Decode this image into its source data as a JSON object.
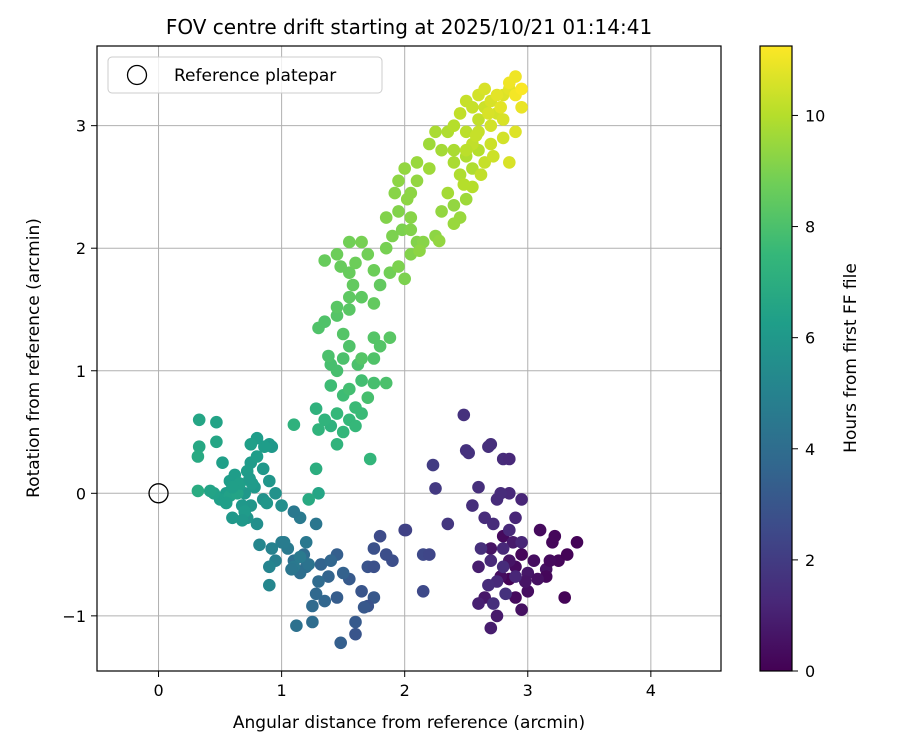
{
  "chart_data": {
    "type": "scatter",
    "title": "FOV centre drift starting at 2025/10/21 01:14:41",
    "xlabel": "Angular distance from reference (arcmin)",
    "ylabel": "Rotation from reference (arcmin)",
    "xlim": [
      -0.5,
      4.57
    ],
    "ylim": [
      -1.45,
      3.65
    ],
    "xticks": [
      0,
      1,
      2,
      3,
      4
    ],
    "yticks": [
      -1,
      0,
      1,
      2,
      3
    ],
    "xtick_labels": [
      "0",
      "1",
      "2",
      "3",
      "4"
    ],
    "ytick_labels": [
      "−1",
      "0",
      "1",
      "2",
      "3"
    ],
    "grid": true,
    "legend": {
      "position": "top-left",
      "entries": [
        {
          "label": "Reference platepar",
          "marker": "open-circle"
        }
      ]
    },
    "reference_point": {
      "x": 0,
      "y": 0,
      "label": "Reference platepar"
    },
    "colorbar": {
      "label": "Hours from first FF file",
      "colormap": "viridis",
      "range": [
        0,
        11.25
      ],
      "ticks": [
        0,
        2,
        4,
        6,
        8,
        10
      ],
      "tick_labels": [
        "0",
        "2",
        "4",
        "6",
        "8",
        "10"
      ]
    },
    "colormap_stops": [
      "#440154",
      "#482878",
      "#3e4989",
      "#31688e",
      "#26828e",
      "#1f9e89",
      "#35b779",
      "#6ece58",
      "#b5de2b",
      "#fde725"
    ],
    "point_columns": [
      "x",
      "y",
      "hours"
    ],
    "points": [
      [
        2.8,
        -0.35,
        0.3
      ],
      [
        2.95,
        -0.5,
        0.2
      ],
      [
        3.05,
        -0.55,
        0.4
      ],
      [
        2.85,
        -0.7,
        0.1
      ],
      [
        3.15,
        -0.62,
        0.5
      ],
      [
        2.7,
        -0.45,
        0.6
      ],
      [
        2.9,
        -0.6,
        0.3
      ],
      [
        3.25,
        -0.55,
        0.2
      ],
      [
        3.3,
        -0.85,
        0.1
      ],
      [
        2.65,
        -0.85,
        0.7
      ],
      [
        2.75,
        -1.0,
        0.8
      ],
      [
        3.0,
        -0.8,
        0.4
      ],
      [
        2.6,
        -0.6,
        0.9
      ],
      [
        3.1,
        -0.3,
        0.3
      ],
      [
        3.2,
        -0.4,
        0.2
      ],
      [
        2.95,
        -0.95,
        0.5
      ],
      [
        3.4,
        -0.4,
        0.1
      ],
      [
        2.85,
        -0.55,
        0.6
      ],
      [
        3.0,
        -0.65,
        0.7
      ],
      [
        2.7,
        -1.1,
        0.9
      ],
      [
        2.9,
        -0.85,
        0.3
      ],
      [
        3.15,
        -0.68,
        0.2
      ],
      [
        3.32,
        -0.5,
        0.1
      ],
      [
        2.78,
        -0.68,
        0.4
      ],
      [
        3.08,
        -0.7,
        0.5
      ],
      [
        2.6,
        -0.9,
        1.0
      ],
      [
        3.22,
        -0.35,
        0.2
      ],
      [
        2.98,
        -0.72,
        0.6
      ],
      [
        2.88,
        -0.4,
        0.8
      ],
      [
        3.18,
        -0.55,
        0.3
      ],
      [
        2.85,
        0.0,
        1.3
      ],
      [
        2.95,
        -0.05,
        1.2
      ],
      [
        2.7,
        0.4,
        1.5
      ],
      [
        2.5,
        0.35,
        1.6
      ],
      [
        2.8,
        0.28,
        1.4
      ],
      [
        2.6,
        0.05,
        1.5
      ],
      [
        2.75,
        -0.05,
        1.4
      ],
      [
        2.48,
        0.64,
        1.6
      ],
      [
        2.85,
        -0.3,
        1.3
      ],
      [
        2.9,
        -0.2,
        1.2
      ],
      [
        2.72,
        -0.25,
        1.4
      ],
      [
        2.55,
        -0.1,
        1.5
      ],
      [
        2.8,
        -0.45,
        1.3
      ],
      [
        2.65,
        -0.2,
        1.4
      ],
      [
        2.68,
        0.38,
        1.5
      ],
      [
        2.52,
        0.33,
        1.6
      ],
      [
        2.85,
        0.28,
        1.3
      ],
      [
        2.78,
        0.0,
        1.4
      ],
      [
        2.35,
        -0.25,
        1.8
      ],
      [
        2.25,
        0.04,
        1.9
      ],
      [
        2.23,
        0.23,
        2.0
      ],
      [
        2.95,
        -0.4,
        1.2
      ],
      [
        2.7,
        -0.55,
        1.3
      ],
      [
        2.8,
        -0.6,
        1.4
      ],
      [
        2.62,
        -0.45,
        1.5
      ],
      [
        2.75,
        -0.72,
        1.3
      ],
      [
        2.9,
        -0.68,
        1.2
      ],
      [
        2.68,
        -0.75,
        1.4
      ],
      [
        2.82,
        -0.82,
        1.6
      ],
      [
        2.72,
        -0.9,
        1.5
      ],
      [
        2.0,
        -0.3,
        2.3
      ],
      [
        2.15,
        -0.5,
        2.5
      ],
      [
        1.9,
        -0.55,
        2.7
      ],
      [
        1.75,
        -0.45,
        2.8
      ],
      [
        1.8,
        -0.35,
        2.6
      ],
      [
        1.7,
        -0.6,
        2.9
      ],
      [
        1.65,
        -0.8,
        3.0
      ],
      [
        1.75,
        -0.85,
        3.1
      ],
      [
        1.6,
        -1.05,
        3.2
      ],
      [
        1.6,
        -1.15,
        3.0
      ],
      [
        1.45,
        -0.85,
        3.3
      ],
      [
        1.55,
        -0.7,
        3.2
      ],
      [
        2.2,
        -0.5,
        2.4
      ],
      [
        2.15,
        -0.8,
        2.5
      ],
      [
        1.85,
        -0.5,
        2.7
      ],
      [
        1.7,
        -0.92,
        2.9
      ],
      [
        2.01,
        -0.3,
        2.2
      ],
      [
        1.48,
        -1.22,
        3.4
      ],
      [
        1.75,
        -0.6,
        2.8
      ],
      [
        1.67,
        -0.93,
        3.1
      ],
      [
        1.5,
        -0.65,
        3.5
      ],
      [
        1.38,
        -0.68,
        3.6
      ],
      [
        1.35,
        -0.88,
        3.7
      ],
      [
        1.28,
        -0.82,
        3.8
      ],
      [
        1.32,
        -0.58,
        3.6
      ],
      [
        1.25,
        -0.92,
        3.9
      ],
      [
        1.45,
        -0.5,
        3.4
      ],
      [
        1.2,
        -0.6,
        4.0
      ],
      [
        1.15,
        -0.65,
        4.1
      ],
      [
        1.3,
        -0.72,
        3.9
      ],
      [
        1.1,
        -0.55,
        4.2
      ],
      [
        1.18,
        -0.5,
        4.0
      ],
      [
        1.4,
        -0.55,
        3.7
      ],
      [
        1.25,
        -1.05,
        4.0
      ],
      [
        1.12,
        -1.08,
        4.2
      ],
      [
        1.05,
        -0.45,
        4.6
      ],
      [
        1.2,
        -0.4,
        4.5
      ],
      [
        1.0,
        -0.4,
        4.8
      ],
      [
        1.1,
        -0.6,
        4.5
      ],
      [
        0.95,
        -0.55,
        4.9
      ],
      [
        1.28,
        -0.25,
        4.4
      ],
      [
        1.15,
        -0.2,
        4.6
      ],
      [
        1.1,
        -0.15,
        4.5
      ],
      [
        0.92,
        -0.45,
        5.0
      ],
      [
        0.9,
        -0.6,
        5.1
      ],
      [
        1.22,
        -0.58,
        4.3
      ],
      [
        1.08,
        -0.62,
        4.4
      ],
      [
        1.15,
        -0.52,
        4.6
      ],
      [
        1.02,
        -0.4,
        4.7
      ],
      [
        0.82,
        -0.42,
        5.2
      ],
      [
        0.9,
        -0.75,
        5.2
      ],
      [
        0.8,
        -0.25,
        5.6
      ],
      [
        0.72,
        -0.2,
        5.8
      ],
      [
        0.6,
        -0.2,
        6.0
      ],
      [
        0.75,
        -0.1,
        5.9
      ],
      [
        0.85,
        -0.05,
        5.7
      ],
      [
        0.7,
        0.0,
        6.0
      ],
      [
        0.65,
        0.05,
        6.1
      ],
      [
        0.58,
        0.1,
        6.2
      ],
      [
        0.55,
        0.0,
        6.2
      ],
      [
        0.5,
        -0.05,
        6.3
      ],
      [
        0.45,
        0.0,
        6.4
      ],
      [
        0.62,
        0.15,
        6.2
      ],
      [
        0.52,
        0.25,
        6.3
      ],
      [
        0.75,
        0.25,
        6.1
      ],
      [
        0.85,
        0.2,
        6.0
      ],
      [
        0.9,
        0.1,
        5.9
      ],
      [
        0.95,
        0.0,
        5.7
      ],
      [
        1.0,
        -0.1,
        5.6
      ],
      [
        0.8,
        0.45,
        6.2
      ],
      [
        0.75,
        0.4,
        6.3
      ],
      [
        0.9,
        0.4,
        6.1
      ],
      [
        0.92,
        0.38,
        6.0
      ],
      [
        0.33,
        0.6,
        6.6
      ],
      [
        0.47,
        0.58,
        6.5
      ],
      [
        0.33,
        0.38,
        6.7
      ],
      [
        0.47,
        0.42,
        6.6
      ],
      [
        0.32,
        0.3,
        6.8
      ],
      [
        0.32,
        0.02,
        6.9
      ],
      [
        0.68,
        -0.1,
        6.0
      ],
      [
        0.78,
        0.05,
        6.0
      ],
      [
        0.58,
        -0.02,
        6.4
      ],
      [
        0.64,
        0.0,
        6.5
      ],
      [
        0.7,
        -0.15,
        6.1
      ],
      [
        0.55,
        -0.08,
        6.3
      ],
      [
        0.42,
        0.02,
        6.5
      ],
      [
        0.88,
        -0.08,
        5.9
      ],
      [
        0.8,
        0.3,
        6.2
      ],
      [
        0.66,
        0.08,
        6.3
      ],
      [
        0.72,
        0.18,
        6.2
      ],
      [
        0.76,
        0.08,
        6.1
      ],
      [
        0.6,
        0.05,
        6.3
      ],
      [
        0.68,
        -0.22,
        6.0
      ],
      [
        0.86,
        0.38,
        6.2
      ],
      [
        0.74,
        0.12,
        6.1
      ],
      [
        1.3,
        0.0,
        6.6
      ],
      [
        1.22,
        -0.05,
        6.8
      ],
      [
        1.1,
        0.56,
        7.2
      ],
      [
        1.28,
        0.2,
        7.0
      ],
      [
        1.3,
        0.52,
        7.3
      ],
      [
        1.4,
        0.55,
        7.2
      ],
      [
        1.5,
        0.5,
        7.4
      ],
      [
        1.55,
        0.6,
        7.5
      ],
      [
        1.35,
        0.6,
        7.3
      ],
      [
        1.45,
        0.65,
        7.5
      ],
      [
        1.6,
        0.7,
        7.6
      ],
      [
        1.72,
        0.28,
        7.4
      ],
      [
        1.45,
        0.4,
        7.3
      ],
      [
        1.65,
        0.65,
        7.6
      ],
      [
        1.28,
        0.69,
        7.2
      ],
      [
        1.6,
        0.55,
        7.5
      ],
      [
        1.5,
        0.8,
        7.7
      ],
      [
        1.4,
        0.88,
        7.7
      ],
      [
        1.55,
        0.85,
        7.8
      ],
      [
        1.65,
        0.92,
        7.8
      ],
      [
        1.75,
        0.9,
        7.9
      ],
      [
        1.85,
        0.9,
        8.0
      ],
      [
        1.7,
        0.78,
        7.9
      ],
      [
        1.62,
        1.05,
        8.0
      ],
      [
        1.5,
        1.1,
        8.0
      ],
      [
        1.4,
        1.05,
        7.9
      ],
      [
        1.38,
        1.12,
        8.0
      ],
      [
        1.45,
        1.0,
        7.9
      ],
      [
        1.55,
        1.2,
        8.1
      ],
      [
        1.65,
        1.1,
        8.2
      ],
      [
        1.75,
        1.1,
        8.1
      ],
      [
        1.8,
        1.2,
        8.2
      ],
      [
        1.88,
        1.27,
        8.3
      ],
      [
        1.75,
        1.27,
        8.2
      ],
      [
        1.5,
        1.3,
        8.2
      ],
      [
        1.35,
        1.4,
        8.1
      ],
      [
        1.3,
        1.35,
        8.1
      ],
      [
        1.45,
        1.45,
        8.2
      ],
      [
        1.55,
        1.5,
        8.3
      ],
      [
        1.45,
        1.52,
        8.3
      ],
      [
        1.55,
        1.6,
        8.4
      ],
      [
        1.65,
        1.6,
        8.4
      ],
      [
        1.75,
        1.55,
        8.5
      ],
      [
        1.8,
        1.7,
        8.5
      ],
      [
        1.58,
        1.7,
        8.5
      ],
      [
        1.55,
        1.8,
        8.6
      ],
      [
        1.48,
        1.85,
        8.6
      ],
      [
        1.6,
        1.88,
        8.7
      ],
      [
        1.75,
        1.82,
        8.7
      ],
      [
        1.88,
        1.8,
        8.8
      ],
      [
        1.35,
        1.9,
        8.6
      ],
      [
        1.45,
        1.95,
        8.7
      ],
      [
        1.7,
        1.95,
        8.8
      ],
      [
        1.85,
        2.0,
        8.9
      ],
      [
        1.55,
        2.05,
        8.8
      ],
      [
        1.65,
        2.05,
        8.9
      ],
      [
        1.9,
        2.1,
        9.0
      ],
      [
        1.98,
        2.15,
        9.0
      ],
      [
        2.05,
        2.15,
        9.1
      ],
      [
        1.95,
        1.85,
        9.0
      ],
      [
        2.0,
        1.75,
        9.0
      ],
      [
        2.05,
        1.95,
        9.1
      ],
      [
        2.1,
        2.05,
        9.1
      ],
      [
        1.85,
        2.25,
        9.1
      ],
      [
        1.95,
        2.3,
        9.1
      ],
      [
        2.05,
        2.25,
        9.2
      ],
      [
        2.15,
        2.05,
        9.2
      ],
      [
        2.25,
        2.1,
        9.3
      ],
      [
        2.3,
        2.3,
        9.4
      ],
      [
        2.4,
        2.35,
        9.4
      ],
      [
        2.45,
        2.25,
        9.5
      ],
      [
        2.4,
        2.2,
        9.5
      ],
      [
        2.5,
        2.4,
        9.6
      ],
      [
        2.28,
        2.06,
        9.4
      ],
      [
        2.12,
        1.98,
        9.3
      ],
      [
        1.92,
        2.45,
        9.2
      ],
      [
        2.02,
        2.4,
        9.3
      ],
      [
        2.1,
        2.55,
        9.4
      ],
      [
        1.95,
        2.55,
        9.3
      ],
      [
        2.0,
        2.65,
        9.4
      ],
      [
        2.1,
        2.7,
        9.5
      ],
      [
        2.2,
        2.65,
        9.6
      ],
      [
        2.05,
        2.45,
        9.3
      ],
      [
        2.3,
        2.8,
        9.7
      ],
      [
        2.2,
        2.85,
        9.6
      ],
      [
        2.4,
        2.8,
        9.8
      ],
      [
        2.5,
        2.75,
        9.9
      ],
      [
        2.6,
        2.8,
        10.0
      ],
      [
        2.4,
        2.7,
        9.8
      ],
      [
        2.55,
        2.65,
        9.9
      ],
      [
        2.45,
        2.6,
        9.9
      ],
      [
        2.35,
        2.45,
        9.7
      ],
      [
        2.55,
        2.5,
        10.0
      ],
      [
        2.35,
        2.95,
        9.9
      ],
      [
        2.25,
        2.95,
        9.8
      ],
      [
        2.4,
        3.0,
        10.0
      ],
      [
        2.5,
        2.95,
        10.1
      ],
      [
        2.6,
        3.05,
        10.2
      ],
      [
        2.45,
        3.1,
        10.2
      ],
      [
        2.55,
        3.15,
        10.3
      ],
      [
        2.65,
        3.15,
        10.4
      ],
      [
        2.5,
        3.2,
        10.3
      ],
      [
        2.6,
        3.25,
        10.5
      ],
      [
        2.7,
        3.2,
        10.6
      ],
      [
        2.75,
        3.1,
        10.5
      ],
      [
        2.8,
        3.25,
        10.7
      ],
      [
        2.65,
        3.3,
        10.6
      ],
      [
        2.85,
        3.3,
        10.8
      ],
      [
        2.75,
        3.25,
        10.8
      ],
      [
        2.9,
        3.4,
        11.0
      ],
      [
        2.85,
        3.35,
        11.0
      ],
      [
        2.7,
        3.0,
        10.5
      ],
      [
        2.8,
        3.05,
        10.6
      ],
      [
        2.9,
        2.95,
        10.7
      ],
      [
        2.95,
        3.15,
        10.9
      ],
      [
        2.6,
        2.95,
        10.3
      ],
      [
        2.7,
        2.85,
        10.4
      ],
      [
        2.8,
        2.9,
        10.5
      ],
      [
        2.55,
        2.85,
        10.2
      ],
      [
        2.65,
        2.7,
        10.3
      ],
      [
        2.85,
        2.7,
        10.6
      ],
      [
        2.9,
        3.25,
        11.1
      ],
      [
        2.95,
        3.3,
        11.2
      ],
      [
        2.5,
        2.8,
        10.1
      ],
      [
        2.62,
        2.6,
        10.2
      ],
      [
        2.72,
        2.75,
        10.4
      ],
      [
        2.48,
        2.52,
        10.0
      ],
      [
        2.58,
        2.92,
        10.3
      ],
      [
        2.68,
        3.1,
        10.6
      ],
      [
        2.78,
        3.15,
        10.8
      ]
    ]
  }
}
